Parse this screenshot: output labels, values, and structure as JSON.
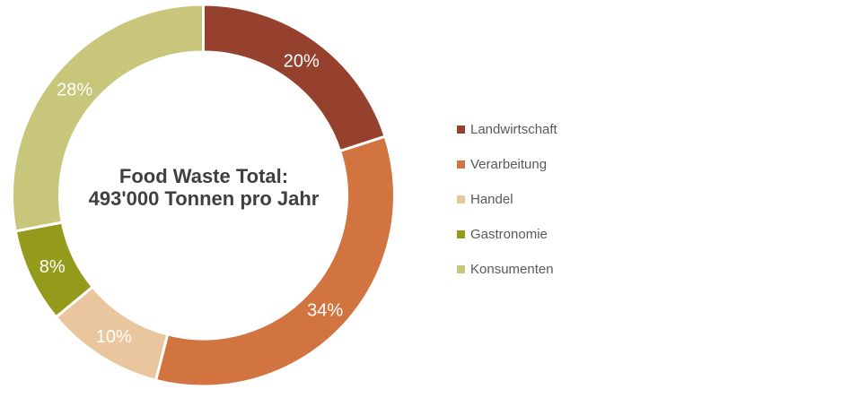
{
  "chart_data": {
    "type": "pie",
    "subtype": "donut",
    "hole_ratio": 0.75,
    "direction": "clockwise",
    "rotation_start_deg": 0,
    "legend_position": "right",
    "categories": [
      "Landwirtschaft",
      "Verarbeitung",
      "Handel",
      "Gastronomie",
      "Konsumenten"
    ],
    "values": [
      20,
      34,
      10,
      8,
      28
    ],
    "unit": "%",
    "data_labels": [
      "20%",
      "34%",
      "10%",
      "8%",
      "28%"
    ],
    "colors": [
      "#96402E",
      "#D1743F",
      "#EAC69E",
      "#949B1A",
      "#C8C67A"
    ],
    "data_label_color": "#FFFFFF",
    "center_label": {
      "line1": "Food Waste Total:",
      "line2": "493'000 Tonnen pro Jahr"
    },
    "center_label_color": "#3F3F3F",
    "legend_text_color": "#595959"
  }
}
